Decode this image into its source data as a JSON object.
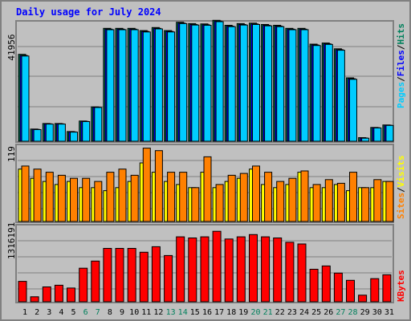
{
  "chart_data": [
    {
      "type": "bar",
      "title": "Daily usage for July 2024",
      "panel": "hits-files-pages",
      "y_tick_label": "41956",
      "y_max": 43500,
      "categories": [
        "1",
        "2",
        "3",
        "4",
        "5",
        "6",
        "7",
        "8",
        "9",
        "10",
        "11",
        "12",
        "13",
        "14",
        "15",
        "16",
        "17",
        "18",
        "19",
        "20",
        "21",
        "22",
        "23",
        "24",
        "25",
        "26",
        "27",
        "28",
        "29",
        "30",
        "31"
      ],
      "weekend_days": [
        "6",
        "7",
        "13",
        "14",
        "20",
        "21",
        "27",
        "28"
      ],
      "legend": [
        "Pages",
        "/",
        "Files",
        "/",
        "Hits"
      ],
      "series": [
        {
          "name": "Hits",
          "color": "#00805c",
          "values": [
            31400,
            4400,
            6400,
            6400,
            3500,
            7300,
            12400,
            40800,
            40800,
            40800,
            40000,
            41100,
            40000,
            43000,
            42500,
            42400,
            43700,
            41900,
            42500,
            42700,
            42200,
            41900,
            40800,
            40800,
            35100,
            35500,
            33400,
            22900,
            1300,
            5000,
            5900
          ]
        },
        {
          "name": "Files",
          "color": "#0000ff",
          "values": [
            31000,
            4300,
            6300,
            6300,
            3400,
            7200,
            12300,
            40500,
            40500,
            40500,
            39700,
            40800,
            39700,
            42700,
            42200,
            42100,
            43400,
            41600,
            42200,
            42400,
            41900,
            41600,
            40500,
            40500,
            34800,
            35200,
            33100,
            22600,
            1200,
            4900,
            5800
          ]
        },
        {
          "name": "Pages",
          "color": "#00ccff",
          "values": [
            30800,
            4200,
            6200,
            6200,
            3300,
            7100,
            12200,
            40300,
            40300,
            40300,
            39500,
            40600,
            39500,
            42500,
            42000,
            41900,
            43200,
            41400,
            42000,
            42200,
            41700,
            41400,
            40300,
            40300,
            34600,
            35000,
            32900,
            22400,
            1100,
            4800,
            5700
          ]
        }
      ]
    },
    {
      "type": "bar",
      "panel": "visits-sites",
      "y_tick_label": "119",
      "y_max": 125,
      "categories": [
        "1",
        "2",
        "3",
        "4",
        "5",
        "6",
        "7",
        "8",
        "9",
        "10",
        "11",
        "12",
        "13",
        "14",
        "15",
        "16",
        "17",
        "18",
        "19",
        "20",
        "21",
        "22",
        "23",
        "24",
        "25",
        "26",
        "27",
        "28",
        "29",
        "30",
        "31"
      ],
      "legend": [
        "Sites",
        "/",
        "Visits"
      ],
      "series": [
        {
          "name": "Visits",
          "color": "#ffff00",
          "values": [
            85,
            70,
            65,
            60,
            65,
            55,
            55,
            50,
            55,
            65,
            95,
            80,
            65,
            60,
            55,
            80,
            55,
            65,
            70,
            85,
            60,
            55,
            60,
            80,
            55,
            55,
            60,
            50,
            55,
            55,
            65
          ]
        },
        {
          "name": "Sites",
          "color": "#ff8000",
          "values": [
            90,
            85,
            80,
            75,
            70,
            70,
            65,
            80,
            85,
            75,
            119,
            115,
            80,
            80,
            55,
            105,
            60,
            75,
            78,
            90,
            80,
            65,
            70,
            82,
            60,
            68,
            62,
            80,
            55,
            68,
            65
          ]
        }
      ]
    },
    {
      "type": "bar",
      "panel": "kbytes",
      "y_tick_label": "1316191",
      "y_max": 1400000,
      "categories": [
        "1",
        "2",
        "3",
        "4",
        "5",
        "6",
        "7",
        "8",
        "9",
        "10",
        "11",
        "12",
        "13",
        "14",
        "15",
        "16",
        "17",
        "18",
        "19",
        "20",
        "21",
        "22",
        "23",
        "24",
        "25",
        "26",
        "27",
        "28",
        "29",
        "30",
        "31"
      ],
      "legend": [
        "KBytes"
      ],
      "series": [
        {
          "name": "KBytes",
          "color": "#ff0000",
          "values": [
            370000,
            90000,
            270000,
            300000,
            250000,
            610000,
            740000,
            970000,
            970000,
            970000,
            900000,
            1000000,
            840000,
            1180000,
            1160000,
            1180000,
            1280000,
            1140000,
            1180000,
            1220000,
            1180000,
            1160000,
            1080000,
            1050000,
            590000,
            650000,
            520000,
            390000,
            120000,
            420000,
            490000
          ]
        }
      ]
    }
  ]
}
